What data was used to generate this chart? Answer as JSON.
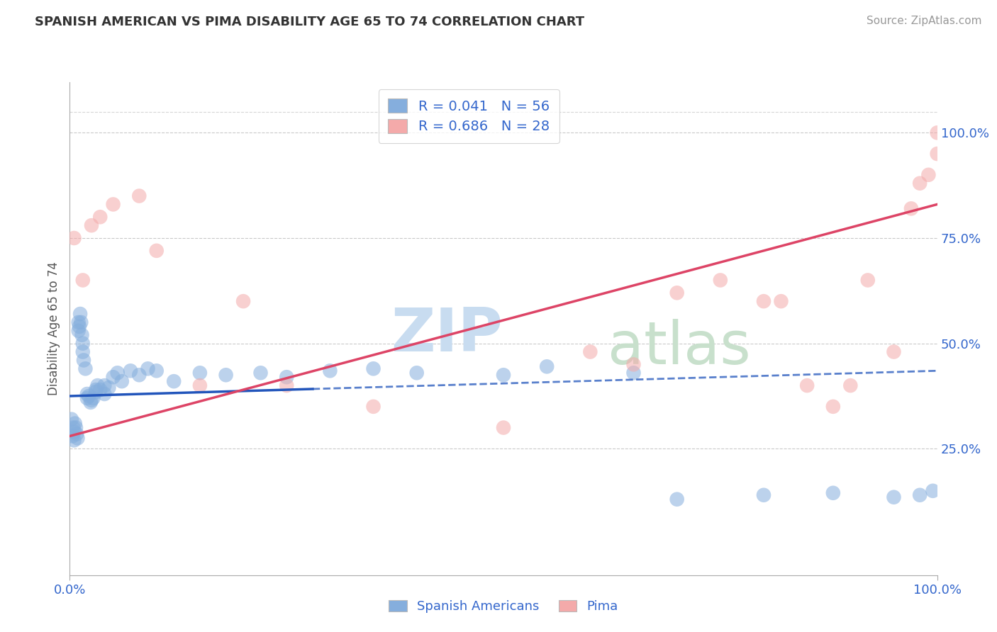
{
  "title": "SPANISH AMERICAN VS PIMA DISABILITY AGE 65 TO 74 CORRELATION CHART",
  "source": "Source: ZipAtlas.com",
  "ylabel": "Disability Age 65 to 74",
  "R_blue": 0.041,
  "N_blue": 56,
  "R_pink": 0.686,
  "N_pink": 28,
  "blue_color": "#85AEDD",
  "pink_color": "#F4AAAA",
  "line_blue_color": "#2255BB",
  "line_pink_color": "#DD4466",
  "background_color": "#FFFFFF",
  "grid_color": "#BBBBBB",
  "title_color": "#333333",
  "axis_label_color": "#3366CC",
  "legend_text_color": "#3366CC",
  "blue_scatter_x": [
    0.2,
    0.3,
    0.4,
    0.5,
    0.5,
    0.6,
    0.7,
    0.8,
    0.9,
    1.0,
    1.0,
    1.1,
    1.2,
    1.3,
    1.4,
    1.5,
    1.5,
    1.6,
    1.8,
    2.0,
    2.0,
    2.2,
    2.4,
    2.5,
    2.7,
    3.0,
    3.0,
    3.2,
    3.5,
    4.0,
    4.0,
    4.5,
    5.0,
    5.5,
    6.0,
    7.0,
    8.0,
    9.0,
    10.0,
    12.0,
    15.0,
    18.0,
    22.0,
    25.0,
    30.0,
    35.0,
    40.0,
    50.0,
    55.0,
    65.0,
    70.0,
    80.0,
    88.0,
    95.0,
    98.0,
    99.5
  ],
  "blue_scatter_y": [
    32.0,
    28.0,
    30.0,
    27.0,
    29.0,
    31.0,
    30.0,
    28.5,
    27.5,
    53.0,
    55.0,
    54.0,
    57.0,
    55.0,
    52.0,
    50.0,
    48.0,
    46.0,
    44.0,
    38.0,
    37.0,
    37.5,
    36.0,
    36.5,
    37.0,
    38.5,
    39.0,
    40.0,
    39.0,
    38.0,
    40.0,
    39.5,
    42.0,
    43.0,
    41.0,
    43.5,
    42.5,
    44.0,
    43.5,
    41.0,
    43.0,
    42.5,
    43.0,
    42.0,
    43.5,
    44.0,
    43.0,
    42.5,
    44.5,
    43.0,
    13.0,
    14.0,
    14.5,
    13.5,
    14.0,
    15.0
  ],
  "pink_scatter_x": [
    0.5,
    1.5,
    2.5,
    3.5,
    5.0,
    8.0,
    10.0,
    15.0,
    20.0,
    25.0,
    35.0,
    50.0,
    60.0,
    65.0,
    70.0,
    75.0,
    80.0,
    82.0,
    85.0,
    88.0,
    90.0,
    92.0,
    95.0,
    97.0,
    98.0,
    99.0,
    100.0,
    100.0
  ],
  "pink_scatter_y": [
    75.0,
    65.0,
    78.0,
    80.0,
    83.0,
    85.0,
    72.0,
    40.0,
    60.0,
    40.0,
    35.0,
    30.0,
    48.0,
    45.0,
    62.0,
    65.0,
    60.0,
    60.0,
    40.0,
    35.0,
    40.0,
    65.0,
    48.0,
    82.0,
    88.0,
    90.0,
    95.0,
    100.0
  ],
  "xmin": 0.0,
  "xmax": 100.0,
  "ymin": -5.0,
  "ymax": 112.0,
  "right_yticks": [
    25.0,
    50.0,
    75.0,
    100.0
  ],
  "right_ytick_labels": [
    "25.0%",
    "50.0%",
    "75.0%",
    "100.0%"
  ],
  "legend_label_blue": "Spanish Americans",
  "legend_label_pink": "Pima",
  "blue_line_solid_end": 30.0,
  "watermark_zip_color": "#C8DCF0",
  "watermark_atlas_color": "#C8E0CC"
}
